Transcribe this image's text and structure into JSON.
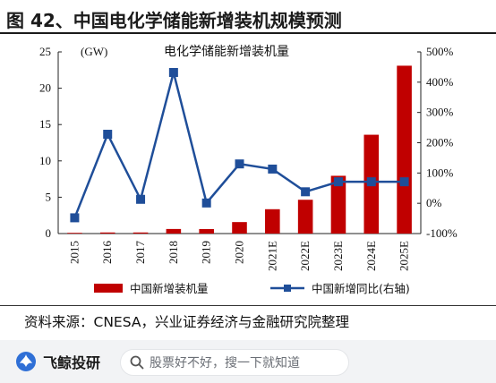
{
  "header": {
    "figure_title": "图 42、中国电化学储能新增装机规模预测"
  },
  "chart_data": {
    "type": "bar",
    "title": "电化学储能新增装机量",
    "categories": [
      "2015",
      "2016",
      "2017",
      "2018",
      "2019",
      "2020",
      "2021E",
      "2022E",
      "2023E",
      "2024E",
      "2025E"
    ],
    "y_left_unit": "(GW)",
    "y_left_ticks": [
      "0",
      "5",
      "10",
      "15",
      "20",
      "25"
    ],
    "y_left_lim": [
      0,
      25
    ],
    "y_right_ticks": [
      "-100%",
      "0%",
      "100%",
      "200%",
      "300%",
      "400%",
      "500%"
    ],
    "y_right_lim": [
      -100,
      500
    ],
    "grid": false,
    "legend_position": "bottom",
    "series": [
      {
        "name": "中国新增装机量",
        "kind": "bar",
        "axis": "left",
        "color": "#c00000",
        "values": [
          0.1,
          0.15,
          0.15,
          0.63,
          0.62,
          1.58,
          3.35,
          4.65,
          7.95,
          13.6,
          23.1
        ]
      },
      {
        "name": "中国新增同比(右轴)",
        "kind": "line",
        "axis": "right",
        "color": "#1f4e99",
        "values": [
          -48,
          228,
          13,
          432,
          1,
          130,
          113,
          38,
          71,
          71,
          71
        ]
      }
    ]
  },
  "source": {
    "text": "资料来源：CNESA，兴业证券经济与金融研究院整理"
  },
  "footer": {
    "brand": "飞鲸投研",
    "search_placeholder": "股票好不好，搜一下就知道",
    "brand_icon": "whale-logo-icon",
    "search_icon": "search-icon"
  }
}
